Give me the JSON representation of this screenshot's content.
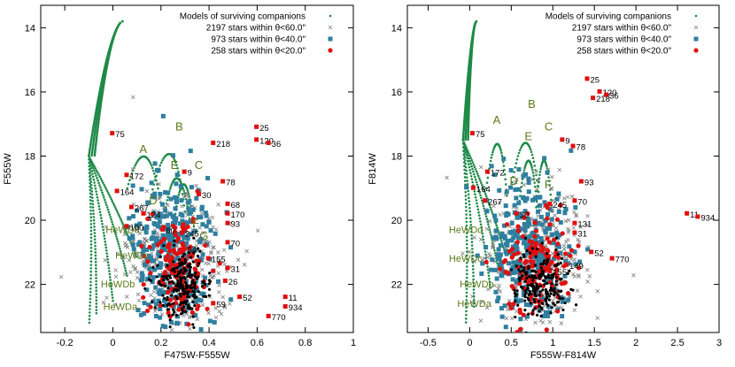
{
  "colors": {
    "models": "#1e8a47",
    "within60": "#808080",
    "within40": "#2f7f9f",
    "within20": "#e01010",
    "label": "#5a7a1a",
    "frame": "#000000"
  },
  "chart_data": [
    {
      "type": "scatter",
      "panel": "left",
      "xlabel": "F475W-F555W",
      "ylabel": "F555W",
      "xlim": [
        -0.3,
        1.0
      ],
      "ylim": [
        23.5,
        13.3
      ],
      "y_inverted": true,
      "xticks": [
        "-0.2",
        "0",
        "0.2",
        "0.4",
        "0.6",
        "0.8",
        "1"
      ],
      "xtick_values": [
        -0.2,
        0,
        0.2,
        0.4,
        0.6,
        0.8,
        1.0
      ],
      "yticks": [
        "14",
        "16",
        "18",
        "20",
        "22"
      ],
      "ytick_values": [
        14,
        16,
        18,
        20,
        22
      ],
      "legend_position": "top-right",
      "legend": [
        {
          "label": "Models of surviving companions",
          "marker": "dot"
        },
        {
          "label": "2197 stars within θ<60.0\"",
          "marker": "x"
        },
        {
          "label": "973 stars within θ<40.0\"",
          "marker": "square"
        },
        {
          "label": "258 stars within θ<20.0\"",
          "marker": "circle"
        }
      ],
      "track_labels": [
        {
          "text": "A",
          "x": 0.11,
          "y": 17.9
        },
        {
          "text": "B",
          "x": 0.26,
          "y": 17.2
        },
        {
          "text": "C",
          "x": 0.34,
          "y": 18.4
        },
        {
          "text": "D",
          "x": 0.15,
          "y": 19.5
        },
        {
          "text": "E",
          "x": 0.24,
          "y": 18.4
        },
        {
          "text": "F",
          "x": 0.33,
          "y": 20.2
        },
        {
          "text": "G",
          "x": 0.36,
          "y": 20.6
        },
        {
          "text": "HeWDd",
          "x": -0.03,
          "y": 20.4
        },
        {
          "text": "HeWDc",
          "x": 0.01,
          "y": 21.2
        },
        {
          "text": "HeWDb",
          "x": -0.05,
          "y": 22.1
        },
        {
          "text": "HeWDa",
          "x": -0.04,
          "y": 22.8
        }
      ],
      "star_labels": [
        {
          "text": "75",
          "x": 0.01,
          "y": 17.3
        },
        {
          "text": "218",
          "x": 0.43,
          "y": 17.6
        },
        {
          "text": "25",
          "x": 0.61,
          "y": 17.1
        },
        {
          "text": "120",
          "x": 0.61,
          "y": 17.5
        },
        {
          "text": "36",
          "x": 0.66,
          "y": 17.6
        },
        {
          "text": "172",
          "x": 0.07,
          "y": 18.6
        },
        {
          "text": "9",
          "x": 0.31,
          "y": 18.5
        },
        {
          "text": "78",
          "x": 0.47,
          "y": 18.8
        },
        {
          "text": "164",
          "x": 0.03,
          "y": 19.1
        },
        {
          "text": "30",
          "x": 0.37,
          "y": 19.2
        },
        {
          "text": "267",
          "x": 0.09,
          "y": 19.6
        },
        {
          "text": "124",
          "x": 0.14,
          "y": 19.8
        },
        {
          "text": "68",
          "x": 0.49,
          "y": 19.5
        },
        {
          "text": "170",
          "x": 0.49,
          "y": 19.8
        },
        {
          "text": "93",
          "x": 0.49,
          "y": 20.1
        },
        {
          "text": "100",
          "x": 0.07,
          "y": 20.2
        },
        {
          "text": "80",
          "x": 0.22,
          "y": 20.3
        },
        {
          "text": "245",
          "x": 0.3,
          "y": 20.4
        },
        {
          "text": "70",
          "x": 0.49,
          "y": 20.7
        },
        {
          "text": "54",
          "x": 0.31,
          "y": 20.9
        },
        {
          "text": "155",
          "x": 0.41,
          "y": 21.2
        },
        {
          "text": "31",
          "x": 0.49,
          "y": 21.5
        },
        {
          "text": "26",
          "x": 0.48,
          "y": 21.9
        },
        {
          "text": "52",
          "x": 0.54,
          "y": 22.4
        },
        {
          "text": "11",
          "x": 0.73,
          "y": 22.4
        },
        {
          "text": "934",
          "x": 0.73,
          "y": 22.7
        },
        {
          "text": "770",
          "x": 0.66,
          "y": 23.0
        },
        {
          "text": "59",
          "x": 0.43,
          "y": 22.6
        }
      ]
    },
    {
      "type": "scatter",
      "panel": "right",
      "xlabel": "F555W-F814W",
      "ylabel": "F814W",
      "xlim": [
        -0.75,
        3.0
      ],
      "ylim": [
        23.5,
        13.3
      ],
      "y_inverted": true,
      "xticks": [
        "-0.5",
        "0",
        "0.5",
        "1",
        "1.5",
        "2",
        "2.5",
        "3"
      ],
      "xtick_values": [
        -0.5,
        0,
        0.5,
        1.0,
        1.5,
        2.0,
        2.5,
        3.0
      ],
      "yticks": [
        "14",
        "16",
        "18",
        "20",
        "22"
      ],
      "ytick_values": [
        14,
        16,
        18,
        20,
        22
      ],
      "legend_position": "top-right",
      "legend": [
        {
          "label": "Models of surviving companions",
          "marker": "dot"
        },
        {
          "label": "2197 stars within θ<60.0\"",
          "marker": "x"
        },
        {
          "label": "973 stars within θ<40.0\"",
          "marker": "square"
        },
        {
          "label": "258 stars within θ<20.0\"",
          "marker": "circle"
        }
      ],
      "track_labels": [
        {
          "text": "A",
          "x": 0.28,
          "y": 17.0
        },
        {
          "text": "B",
          "x": 0.7,
          "y": 16.5
        },
        {
          "text": "C",
          "x": 0.9,
          "y": 17.2
        },
        {
          "text": "D",
          "x": 0.48,
          "y": 18.9
        },
        {
          "text": "E",
          "x": 0.66,
          "y": 17.5
        },
        {
          "text": "F",
          "x": 0.9,
          "y": 19.0
        },
        {
          "text": "HeWDd",
          "x": -0.25,
          "y": 20.4
        },
        {
          "text": "HeWDc",
          "x": -0.25,
          "y": 21.3
        },
        {
          "text": "HeWDb",
          "x": -0.12,
          "y": 22.1
        },
        {
          "text": "HeWDa",
          "x": -0.15,
          "y": 22.7
        }
      ],
      "star_labels": [
        {
          "text": "75",
          "x": 0.07,
          "y": 17.3
        },
        {
          "text": "25",
          "x": 1.45,
          "y": 15.6
        },
        {
          "text": "120",
          "x": 1.6,
          "y": 16.0
        },
        {
          "text": "36",
          "x": 1.68,
          "y": 16.1
        },
        {
          "text": "218",
          "x": 1.52,
          "y": 16.2
        },
        {
          "text": "9",
          "x": 1.15,
          "y": 17.5
        },
        {
          "text": "78",
          "x": 1.28,
          "y": 17.7
        },
        {
          "text": "172",
          "x": 0.25,
          "y": 18.5
        },
        {
          "text": "93",
          "x": 1.38,
          "y": 18.8
        },
        {
          "text": "164",
          "x": 0.08,
          "y": 19.0
        },
        {
          "text": "267",
          "x": 0.22,
          "y": 19.4
        },
        {
          "text": "70",
          "x": 1.3,
          "y": 19.4
        },
        {
          "text": "245",
          "x": 1.0,
          "y": 19.5
        },
        {
          "text": "30",
          "x": 0.6,
          "y": 19.8
        },
        {
          "text": "131",
          "x": 1.3,
          "y": 20.1
        },
        {
          "text": "31",
          "x": 1.3,
          "y": 20.4
        },
        {
          "text": "11",
          "x": 2.65,
          "y": 19.8
        },
        {
          "text": "934",
          "x": 2.78,
          "y": 19.9
        },
        {
          "text": "52",
          "x": 1.5,
          "y": 21.0
        },
        {
          "text": "149",
          "x": 1.2,
          "y": 21.4
        },
        {
          "text": "770",
          "x": 1.75,
          "y": 21.2
        },
        {
          "text": "155",
          "x": 1.0,
          "y": 21.6
        }
      ]
    }
  ]
}
